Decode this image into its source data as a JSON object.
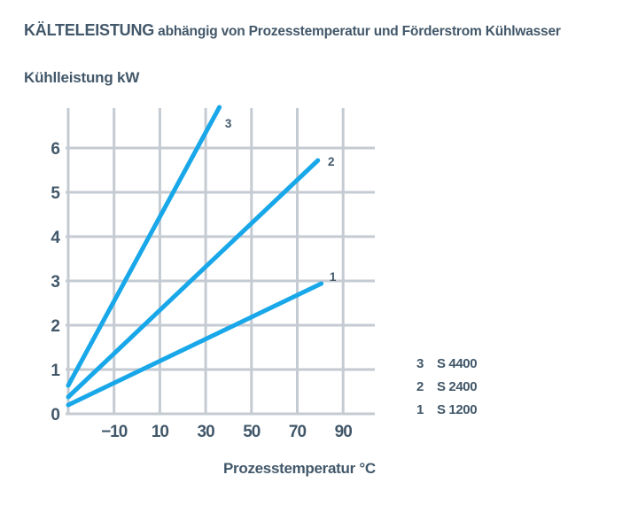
{
  "header": {
    "title_strong": "KÄLTELEISTUNG",
    "title_rest": " abhängig von Prozesstemperatur und Förderstrom Kühlwasser"
  },
  "chart_data": {
    "type": "line",
    "title": "KÄLTELEISTUNG abhängig von Prozesstemperatur und Förderstrom Kühlwasser",
    "ylabel": "Kühlleistung kW",
    "xlabel": "Prozesstemperatur °C",
    "xlim": [
      -30,
      104
    ],
    "ylim": [
      0,
      6.92
    ],
    "grid": true,
    "x_gridlines": [
      -30,
      -10,
      10,
      30,
      50,
      70,
      90
    ],
    "x_ticks": [
      -10,
      10,
      30,
      50,
      70,
      90
    ],
    "x_tick_labels": [
      "−10",
      "10",
      "30",
      "50",
      "70",
      "90"
    ],
    "y_ticks": [
      0,
      1,
      2,
      3,
      4,
      5,
      6
    ],
    "y_tick_labels": [
      "0",
      "1",
      "2",
      "3",
      "4",
      "5",
      "6"
    ],
    "series": [
      {
        "name": "S 4400",
        "label": "3",
        "points": [
          [
            -30,
            0.64
          ],
          [
            36,
            6.92
          ]
        ]
      },
      {
        "name": "S 2400",
        "label": "2",
        "points": [
          [
            -30,
            0.38
          ],
          [
            79,
            5.72
          ]
        ]
      },
      {
        "name": "S 1200",
        "label": "1",
        "points": [
          [
            -30,
            0.2
          ],
          [
            80.5,
            2.94
          ]
        ]
      }
    ],
    "legend_position": "lower right",
    "colors": {
      "line": "#18a7e9",
      "grid": "#c5cbd2",
      "text": "#42586a"
    }
  },
  "legend": {
    "items": [
      {
        "num": "3",
        "label": "S 4400"
      },
      {
        "num": "2",
        "label": "S 2400"
      },
      {
        "num": "1",
        "label": "S 1200"
      }
    ]
  }
}
